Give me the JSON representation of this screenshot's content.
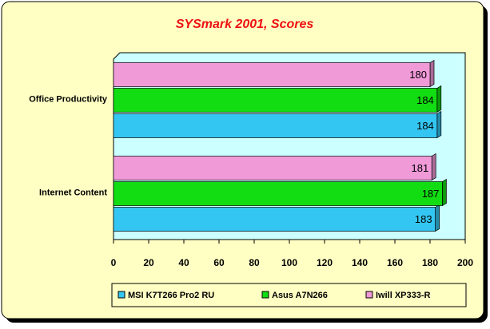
{
  "chart_data": {
    "type": "barh",
    "title": "SYSmark 2001, Scores",
    "categories": [
      "Office Productivity",
      "Internet Content"
    ],
    "series": [
      {
        "name": "MSI K7T266 Pro2 RU",
        "color": "#33c6f2",
        "values": [
          184,
          183
        ]
      },
      {
        "name": "Asus A7N266",
        "color": "#12dc12",
        "values": [
          184,
          187
        ]
      },
      {
        "name": "Iwill XP333-R",
        "color": "#f09ad8",
        "values": [
          180,
          181
        ]
      }
    ],
    "xlim": [
      0,
      200
    ],
    "xticks": [
      0,
      20,
      40,
      60,
      80,
      100,
      120,
      140,
      160,
      180,
      200
    ],
    "legend": "bottom"
  }
}
